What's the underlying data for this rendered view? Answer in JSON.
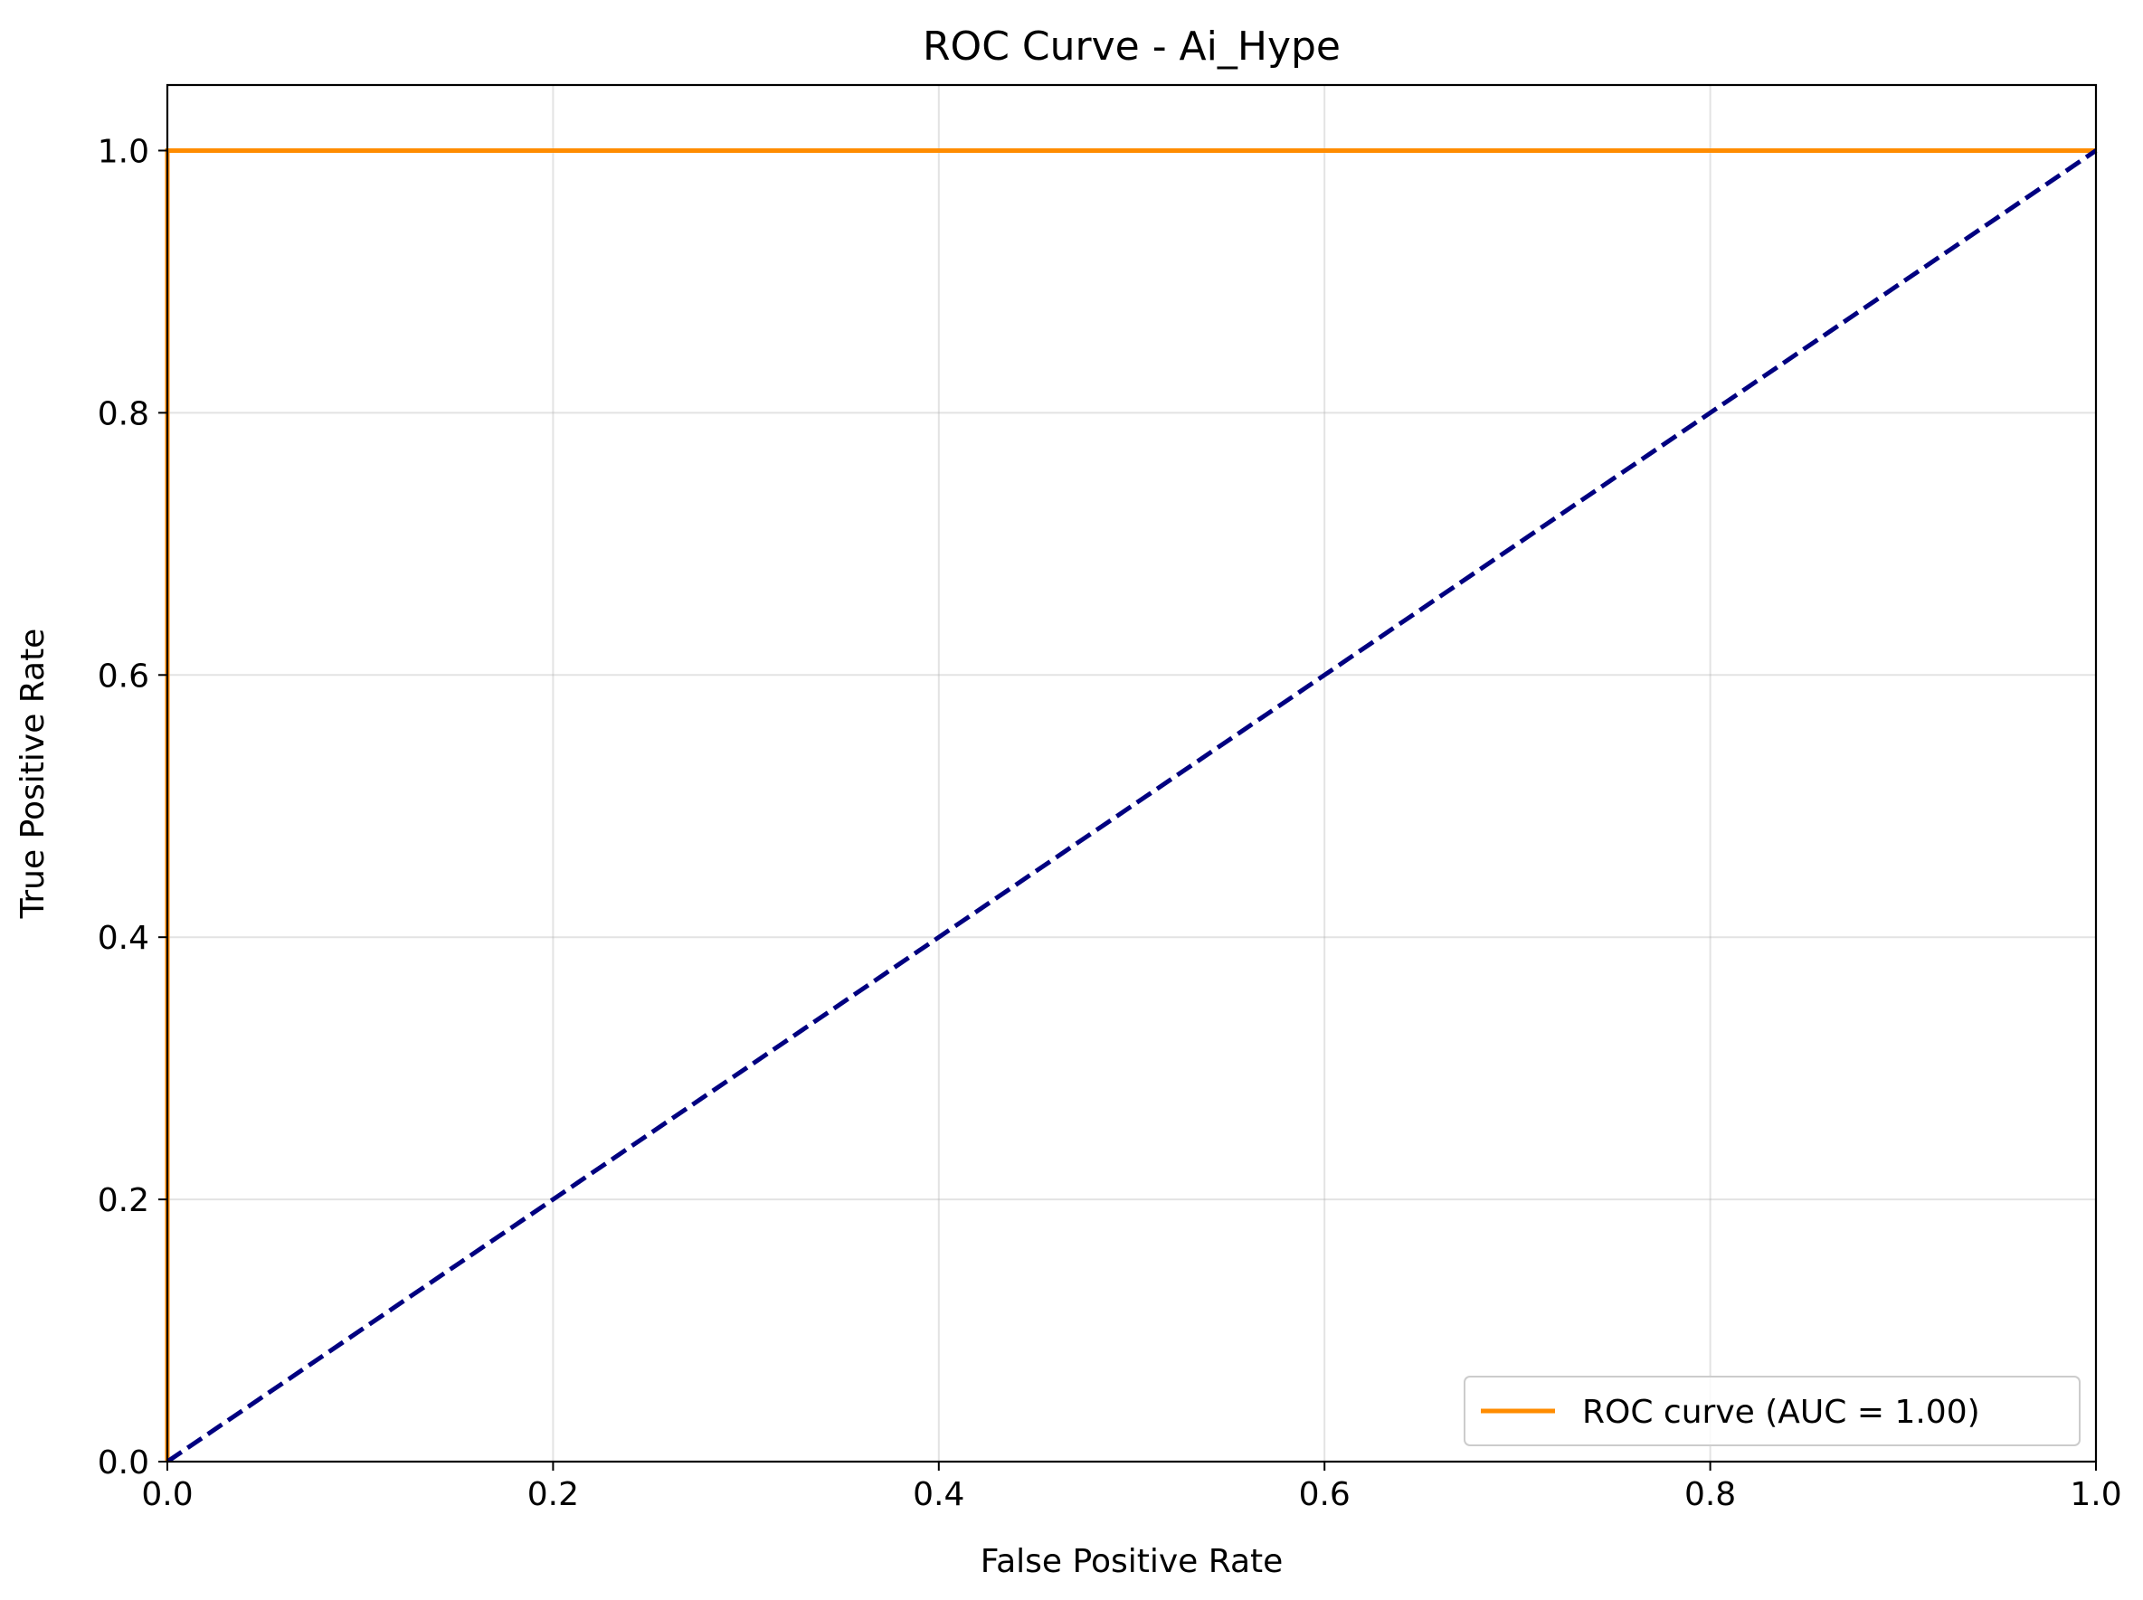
{
  "chart_data": {
    "type": "line",
    "title": "ROC Curve - Ai_Hype",
    "xlabel": "False Positive Rate",
    "ylabel": "True Positive Rate",
    "xlim": [
      0.0,
      1.0
    ],
    "ylim": [
      0.0,
      1.05
    ],
    "x_ticks": [
      "0.0",
      "0.2",
      "0.4",
      "0.6",
      "0.8",
      "1.0"
    ],
    "x_tick_values": [
      0.0,
      0.2,
      0.4,
      0.6,
      0.8,
      1.0
    ],
    "y_ticks": [
      "0.0",
      "0.2",
      "0.4",
      "0.6",
      "0.8",
      "1.0"
    ],
    "y_tick_values": [
      0.0,
      0.2,
      0.4,
      0.6,
      0.8,
      1.0
    ],
    "grid": true,
    "legend_position": "lower-right",
    "series": [
      {
        "name": "ROC curve (AUC = 1.00)",
        "color": "#ff8c00",
        "style": "solid",
        "x": [
          0.0,
          0.0,
          1.0
        ],
        "y": [
          0.0,
          1.0,
          1.0
        ]
      },
      {
        "color": "#000080",
        "style": "dashed",
        "x": [
          0.0,
          1.0
        ],
        "y": [
          0.0,
          1.0
        ]
      }
    ]
  }
}
